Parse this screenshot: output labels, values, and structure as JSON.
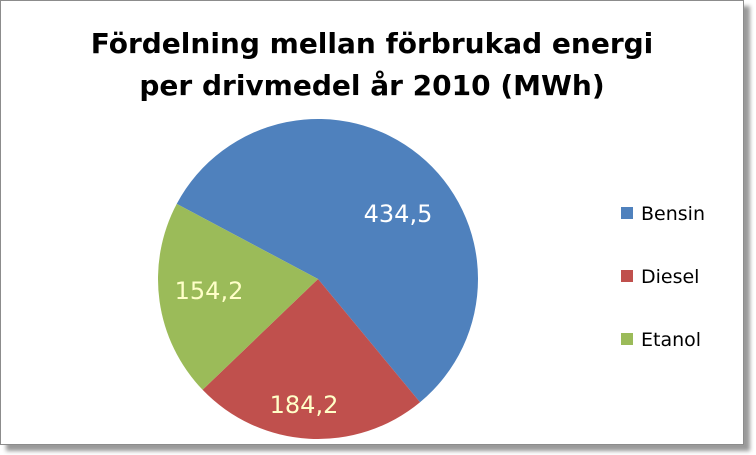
{
  "chart_data": {
    "type": "pie",
    "title_line1": "Fördelning mellan förbrukad energi",
    "title_line2": "per drivmedel år 2010 (MWh)",
    "categories": [
      "Bensin",
      "Diesel",
      "Etanol"
    ],
    "values": [
      434.5,
      184.2,
      154.2
    ],
    "data_labels": [
      "434,5",
      "184,2",
      "154,2"
    ],
    "colors": [
      "#4f81bd",
      "#c0504d",
      "#9bbb59"
    ],
    "label_colors": [
      "#ffffff",
      "#ffffc8",
      "#ffffc8"
    ],
    "legend_position": "right",
    "start_slice": "Bensin",
    "direction": "clockwise"
  }
}
